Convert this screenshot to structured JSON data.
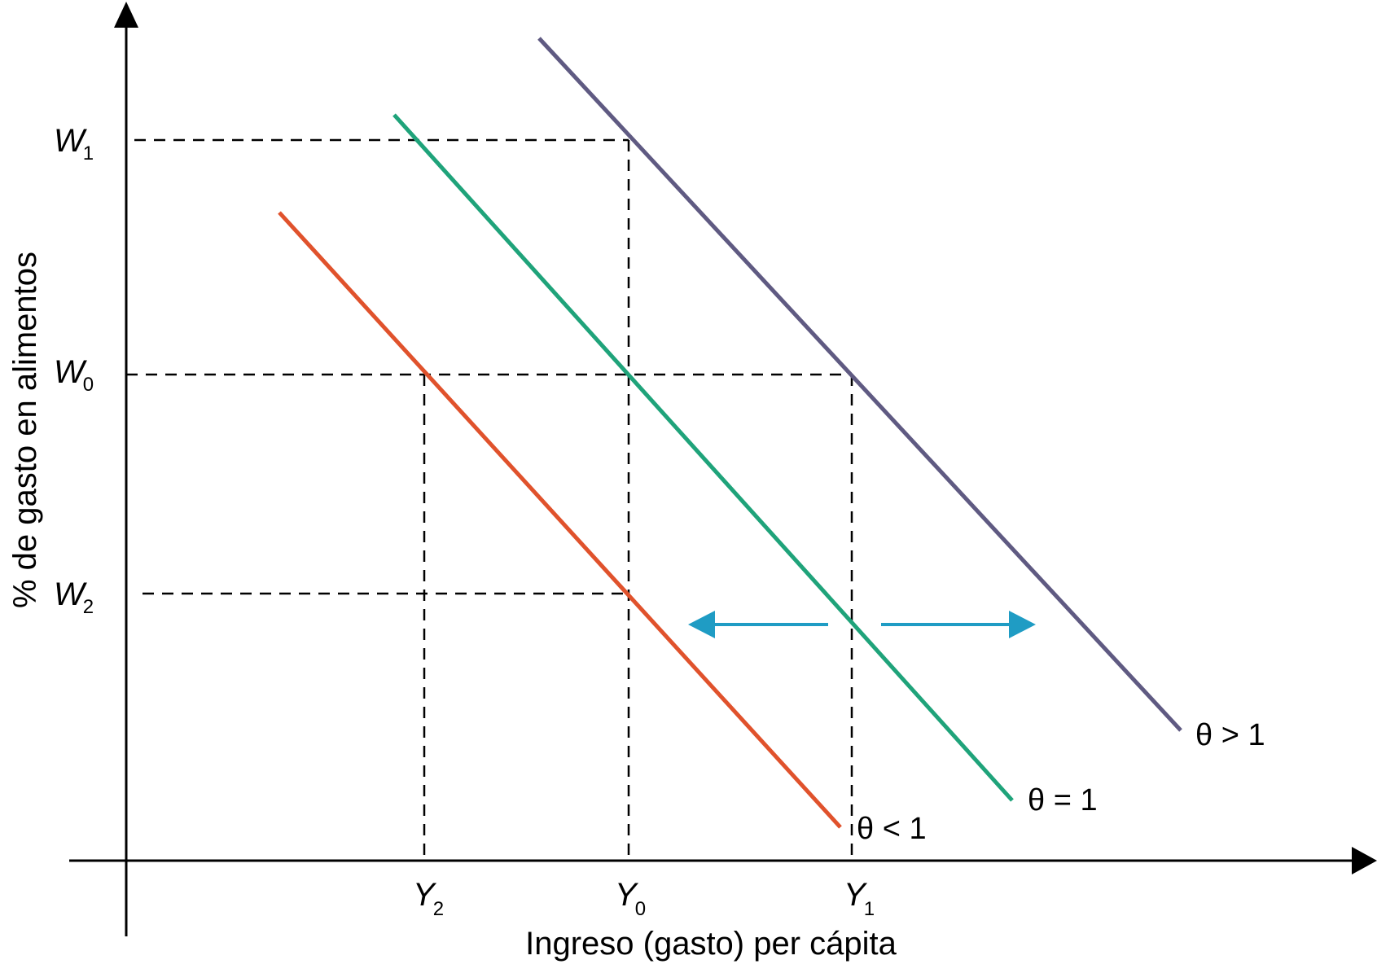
{
  "axes": {
    "y_title": "% de gasto en alimentos",
    "x_title": "Ingreso (gasto) per cápita"
  },
  "y_ticks": [
    {
      "main": "W",
      "sub": "1"
    },
    {
      "main": "W",
      "sub": "0"
    },
    {
      "main": "W",
      "sub": "2"
    }
  ],
  "x_ticks": [
    {
      "main": "Y",
      "sub": "2"
    },
    {
      "main": "Y",
      "sub": "0"
    },
    {
      "main": "Y",
      "sub": "1"
    }
  ],
  "curves": [
    {
      "label": "θ > 1",
      "color": "#5f5a82"
    },
    {
      "label": "θ = 1",
      "color": "#1fa37a"
    },
    {
      "label": "θ < 1",
      "color": "#e0522c"
    }
  ],
  "arrow_color": "#1f9cc4"
}
